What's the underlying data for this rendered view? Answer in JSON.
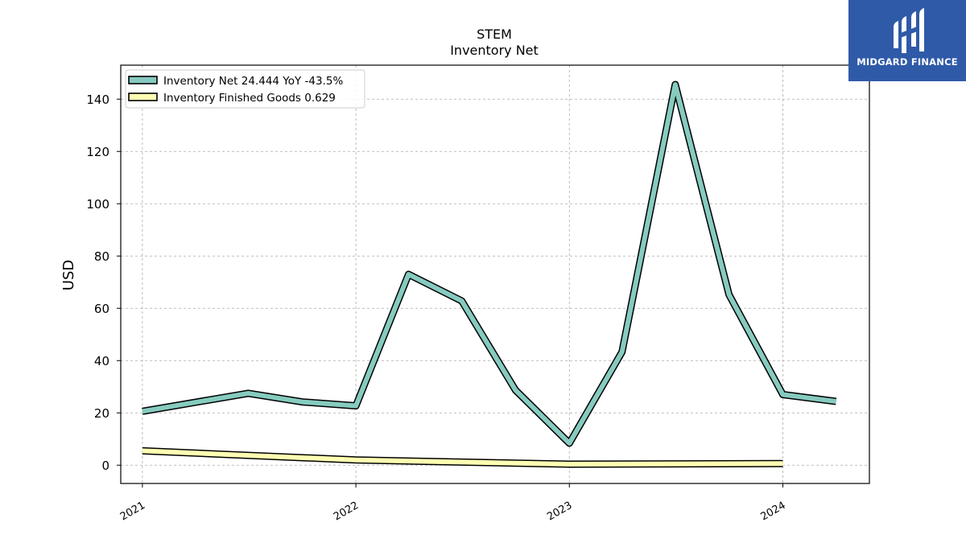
{
  "brand": {
    "name": "MIDGARD FINANCE",
    "bg_color": "#2f5aa8"
  },
  "chart_data": {
    "type": "line",
    "title": "STEM",
    "subtitle": "Inventory Net",
    "ylabel": "USD",
    "xlabel": "",
    "ylim": [
      -7,
      153
    ],
    "yticks": [
      0,
      20,
      40,
      60,
      80,
      100,
      120,
      140
    ],
    "xticks": [
      "2021",
      "2022",
      "2023",
      "2024"
    ],
    "xlim": [
      "2020-11-25",
      "2024-05-28"
    ],
    "grid": true,
    "legend_position": "top-left",
    "series": [
      {
        "name": "Inventory Net",
        "legend_label": "Inventory Net  24.444 YoY -43.5%",
        "color": "#86cbbf",
        "points": [
          {
            "x": "2021-01-01",
            "y": 20.6
          },
          {
            "x": "2021-07-01",
            "y": 27.5
          },
          {
            "x": "2021-10-01",
            "y": 24.2
          },
          {
            "x": "2022-01-01",
            "y": 22.7
          },
          {
            "x": "2022-04-01",
            "y": 73.0
          },
          {
            "x": "2022-07-01",
            "y": 62.8
          },
          {
            "x": "2022-10-01",
            "y": 28.7
          },
          {
            "x": "2023-01-01",
            "y": 8.4
          },
          {
            "x": "2023-04-01",
            "y": 43.3
          },
          {
            "x": "2023-07-01",
            "y": 145.6
          },
          {
            "x": "2023-10-01",
            "y": 65.2
          },
          {
            "x": "2024-01-01",
            "y": 27.0
          },
          {
            "x": "2024-04-01",
            "y": 24.4
          }
        ]
      },
      {
        "name": "Inventory Finished Goods",
        "legend_label": "Inventory Finished Goods  0.629",
        "color": "#ffffb3",
        "points": [
          {
            "x": "2021-01-01",
            "y": 5.5
          },
          {
            "x": "2022-01-01",
            "y": 2.0
          },
          {
            "x": "2023-01-01",
            "y": 0.4
          },
          {
            "x": "2024-01-01",
            "y": 0.6
          }
        ]
      }
    ]
  }
}
